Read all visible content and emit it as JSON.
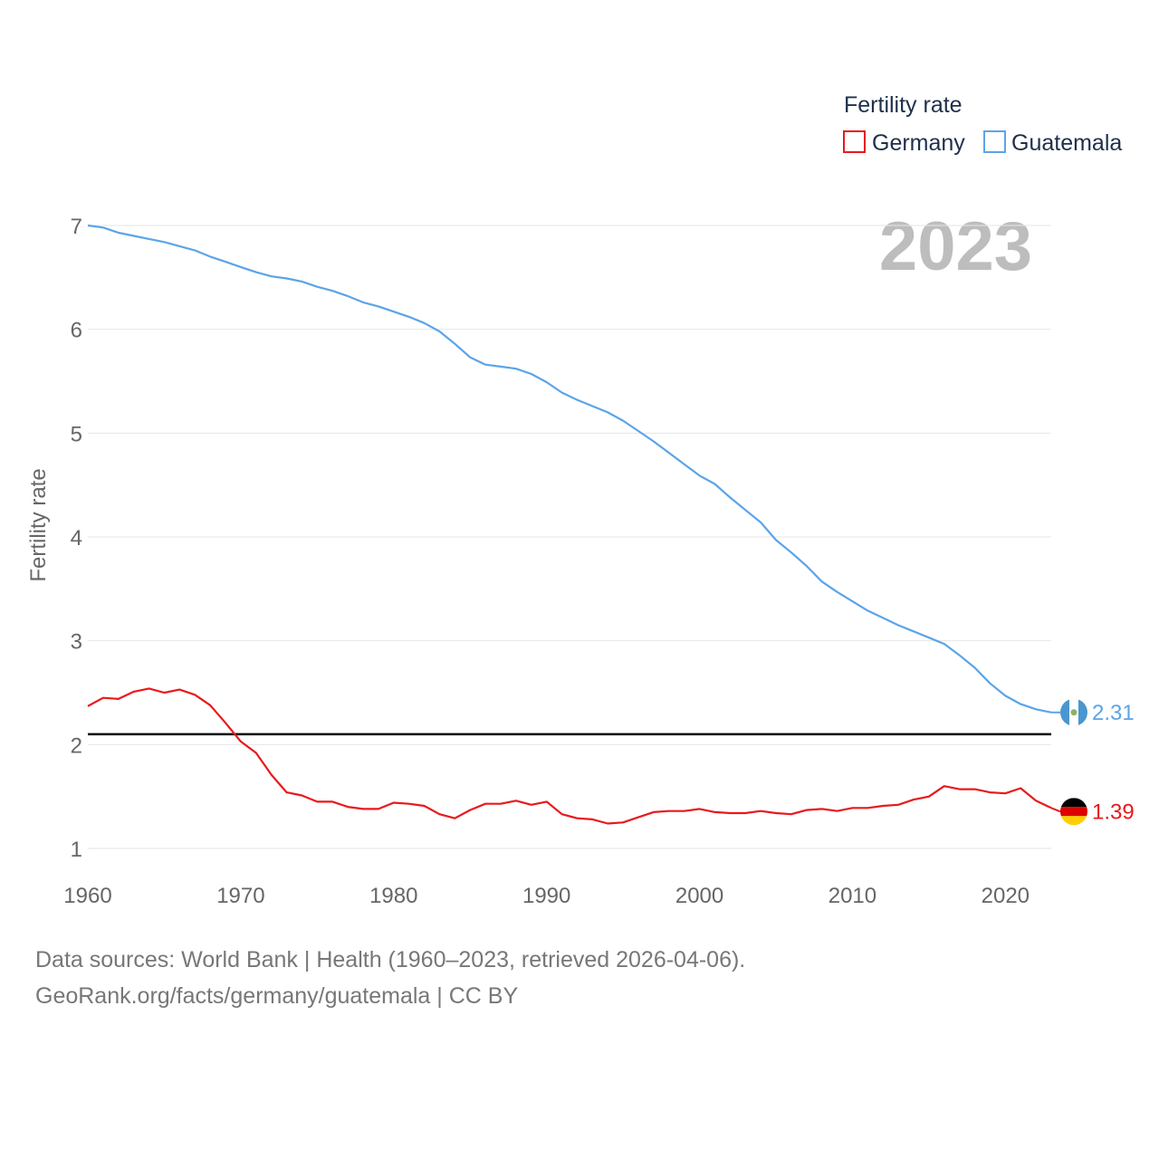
{
  "legend": {
    "title": "Fertility rate",
    "items": [
      {
        "label": "Germany",
        "color": "#e8191c"
      },
      {
        "label": "Guatemala",
        "color": "#5ba4e8"
      }
    ]
  },
  "year_label": "2023",
  "end_labels": {
    "guatemala": "2.31",
    "germany": "1.39"
  },
  "source": {
    "line1": "Data sources: World Bank | Health (1960–2023, retrieved 2026-04-06).",
    "line2": "GeoRank.org/facts/germany/guatemala | CC BY"
  },
  "flags": {
    "guatemala": "guatemala-flag-icon",
    "germany": "germany-flag-icon"
  },
  "chart_data": {
    "type": "line",
    "title": "",
    "xlabel": "",
    "ylabel": "Fertility rate",
    "xlim": [
      1960,
      2023
    ],
    "ylim": [
      0.75,
      7.05
    ],
    "yticks": [
      1,
      2,
      3,
      4,
      5,
      6,
      7
    ],
    "xticks": [
      1960,
      1970,
      1980,
      1990,
      2000,
      2010,
      2020
    ],
    "reference_line": {
      "y": 2.1,
      "color": "#000000"
    },
    "x": [
      1960,
      1961,
      1962,
      1963,
      1964,
      1965,
      1966,
      1967,
      1968,
      1969,
      1970,
      1971,
      1972,
      1973,
      1974,
      1975,
      1976,
      1977,
      1978,
      1979,
      1980,
      1981,
      1982,
      1983,
      1984,
      1985,
      1986,
      1987,
      1988,
      1989,
      1990,
      1991,
      1992,
      1993,
      1994,
      1995,
      1996,
      1997,
      1998,
      1999,
      2000,
      2001,
      2002,
      2003,
      2004,
      2005,
      2006,
      2007,
      2008,
      2009,
      2010,
      2011,
      2012,
      2013,
      2014,
      2015,
      2016,
      2017,
      2018,
      2019,
      2020,
      2021,
      2022,
      2023
    ],
    "series": [
      {
        "name": "Germany",
        "color": "#e8191c",
        "values": [
          2.37,
          2.45,
          2.44,
          2.51,
          2.54,
          2.5,
          2.53,
          2.48,
          2.38,
          2.21,
          2.03,
          1.92,
          1.71,
          1.54,
          1.51,
          1.45,
          1.45,
          1.4,
          1.38,
          1.38,
          1.44,
          1.43,
          1.41,
          1.33,
          1.29,
          1.37,
          1.43,
          1.43,
          1.46,
          1.42,
          1.45,
          1.33,
          1.29,
          1.28,
          1.24,
          1.25,
          1.3,
          1.35,
          1.36,
          1.36,
          1.38,
          1.35,
          1.34,
          1.34,
          1.36,
          1.34,
          1.33,
          1.37,
          1.38,
          1.36,
          1.39,
          1.39,
          1.41,
          1.42,
          1.47,
          1.5,
          1.6,
          1.57,
          1.57,
          1.54,
          1.53,
          1.58,
          1.46,
          1.39
        ]
      },
      {
        "name": "Guatemala",
        "color": "#5ba4e8",
        "values": [
          7.0,
          6.98,
          6.93,
          6.9,
          6.87,
          6.84,
          6.8,
          6.76,
          6.7,
          6.65,
          6.6,
          6.55,
          6.51,
          6.49,
          6.46,
          6.41,
          6.37,
          6.32,
          6.26,
          6.22,
          6.17,
          6.12,
          6.06,
          5.98,
          5.86,
          5.73,
          5.66,
          5.64,
          5.62,
          5.57,
          5.49,
          5.39,
          5.32,
          5.26,
          5.2,
          5.12,
          5.02,
          4.92,
          4.81,
          4.7,
          4.59,
          4.51,
          4.38,
          4.26,
          4.14,
          3.97,
          3.85,
          3.72,
          3.57,
          3.47,
          3.38,
          3.29,
          3.22,
          3.15,
          3.09,
          3.03,
          2.97,
          2.86,
          2.74,
          2.59,
          2.47,
          2.39,
          2.34,
          2.31
        ]
      }
    ]
  }
}
